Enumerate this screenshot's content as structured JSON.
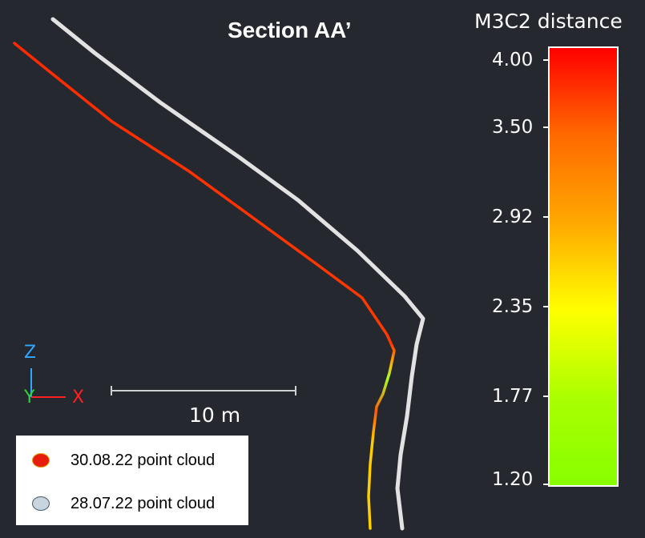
{
  "viewer": {
    "title": "Section AA’",
    "background_color": "#262830"
  },
  "scale": {
    "title": "M3C2 distance",
    "ticks": [
      "4.00",
      "3.50",
      "2.92",
      "2.35",
      "1.77",
      "1.20"
    ],
    "gradient_colors": [
      "#ff0000",
      "#ff6a00",
      "#ffa800",
      "#ffff00",
      "#aaff00",
      "#88ff00"
    ]
  },
  "scalebar": {
    "label": "10  m"
  },
  "axes": {
    "z_label": "Z",
    "y_label": "Y",
    "x_label": "X",
    "z_color": "#2fa8ff",
    "y_color": "#2ed23a",
    "x_color": "#ff2020"
  },
  "legend": {
    "items": [
      {
        "label": "30.08.22 point cloud",
        "color": "#e61c0c"
      },
      {
        "label": "28.07.22 point cloud",
        "color": "#c8d4de"
      }
    ]
  }
}
